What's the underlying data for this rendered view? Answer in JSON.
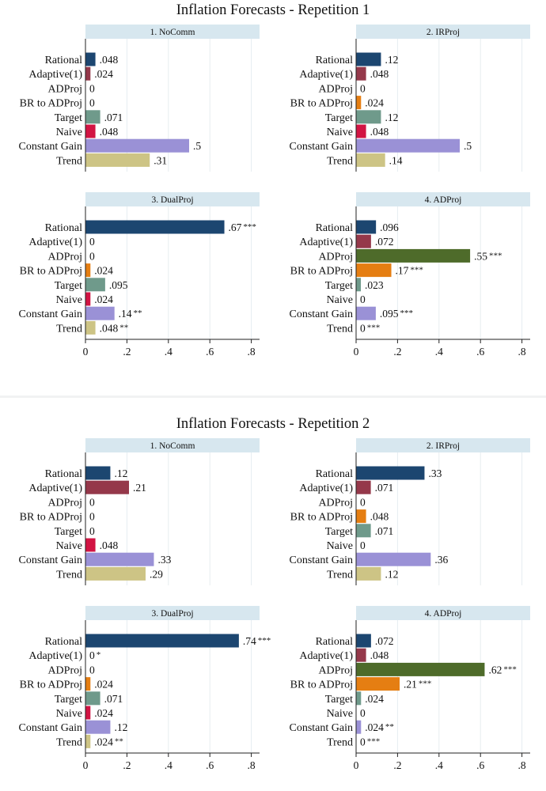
{
  "categories": [
    "Rational",
    "Adaptive(1)",
    "ADProj",
    "BR to ADProj",
    "Target",
    "Naive",
    "Constant Gain",
    "Trend"
  ],
  "colors": [
    "#1c4670",
    "#95384a",
    "#4e6b2a",
    "#e57e12",
    "#6f9a8b",
    "#d21443",
    "#9a91d6",
    "#cdc485"
  ],
  "x_ticks": [
    {
      "value": 0,
      "label": "0"
    },
    {
      "value": 0.2,
      "label": ".2"
    },
    {
      "value": 0.4,
      "label": ".4"
    },
    {
      "value": 0.6,
      "label": ".6"
    },
    {
      "value": 0.8,
      "label": ".8"
    }
  ],
  "chart_data": [
    {
      "type": "bar",
      "title": "Inflation Forecasts -  Repetition 1",
      "panels": [
        {
          "title": "1. NoComm",
          "values": [
            0.048,
            0.024,
            0,
            0,
            0.071,
            0.048,
            0.5,
            0.31
          ],
          "labels": [
            ".048",
            ".024",
            "0",
            "0",
            ".071",
            ".048",
            ".5",
            ".31"
          ],
          "stars": [
            "",
            "",
            "",
            "",
            "",
            "",
            "",
            ""
          ]
        },
        {
          "title": "2. IRProj",
          "values": [
            0.12,
            0.048,
            0,
            0.024,
            0.12,
            0.048,
            0.5,
            0.14
          ],
          "labels": [
            ".12",
            ".048",
            "0",
            ".024",
            ".12",
            ".048",
            ".5",
            ".14"
          ],
          "stars": [
            "",
            "",
            "",
            "",
            "",
            "",
            "",
            ""
          ]
        },
        {
          "title": "3. DualProj",
          "values": [
            0.67,
            0,
            0,
            0.024,
            0.095,
            0.024,
            0.14,
            0.048
          ],
          "labels": [
            ".67",
            "0",
            "0",
            ".024",
            ".095",
            ".024",
            ".14",
            ".048"
          ],
          "stars": [
            "***",
            "",
            "",
            "",
            "",
            "",
            "**",
            "**"
          ]
        },
        {
          "title": "4. ADProj",
          "values": [
            0.096,
            0.072,
            0.55,
            0.17,
            0.023,
            0,
            0.095,
            0
          ],
          "labels": [
            ".096",
            ".072",
            ".55",
            ".17",
            ".023",
            "0",
            ".095",
            "0"
          ],
          "stars": [
            "",
            "",
            "***",
            "***",
            "",
            "",
            "***",
            "***"
          ]
        }
      ],
      "xlim": [
        0,
        0.8
      ]
    },
    {
      "type": "bar",
      "title": "Inflation Forecasts -  Repetition 2",
      "panels": [
        {
          "title": "1. NoComm",
          "values": [
            0.12,
            0.21,
            0,
            0,
            0,
            0.048,
            0.33,
            0.29
          ],
          "labels": [
            ".12",
            ".21",
            "0",
            "0",
            "0",
            ".048",
            ".33",
            ".29"
          ],
          "stars": [
            "",
            "",
            "",
            "",
            "",
            "",
            "",
            ""
          ]
        },
        {
          "title": "2. IRProj",
          "values": [
            0.33,
            0.071,
            0,
            0.048,
            0.071,
            0,
            0.36,
            0.12
          ],
          "labels": [
            ".33",
            ".071",
            "0",
            ".048",
            ".071",
            "0",
            ".36",
            ".12"
          ],
          "stars": [
            "",
            "",
            "",
            "",
            "",
            "",
            "",
            ""
          ]
        },
        {
          "title": "3. DualProj",
          "values": [
            0.74,
            0,
            0,
            0.024,
            0.071,
            0.024,
            0.12,
            0.024
          ],
          "labels": [
            ".74",
            "0",
            "0",
            ".024",
            ".071",
            ".024",
            ".12",
            ".024"
          ],
          "stars": [
            "***",
            "*",
            "",
            "",
            "",
            "",
            "",
            "**"
          ]
        },
        {
          "title": "4. ADProj",
          "values": [
            0.072,
            0.048,
            0.62,
            0.21,
            0.024,
            0,
            0.024,
            0
          ],
          "labels": [
            ".072",
            ".048",
            ".62",
            ".21",
            ".024",
            "0",
            ".024",
            "0"
          ],
          "stars": [
            "",
            "",
            "***",
            "***",
            "",
            "",
            "**",
            "***"
          ]
        }
      ],
      "xlim": [
        0,
        0.8
      ]
    }
  ]
}
